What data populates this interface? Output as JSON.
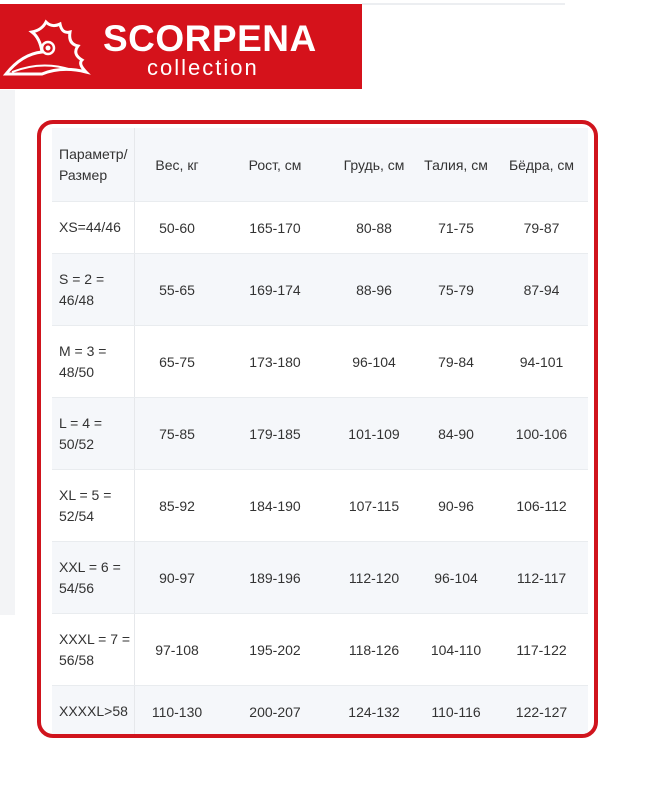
{
  "logo": {
    "brand": "SCORPENA",
    "sub": "collection",
    "color": "#d5121b"
  },
  "table": {
    "headers": [
      "Параметр/ Размер",
      "Вес, кг",
      "Рост, см",
      "Грудь, см",
      "Талия, см",
      "Бёдра, см"
    ],
    "rows": [
      [
        "XS=44/46",
        "50-60",
        "165-170",
        "80-88",
        "71-75",
        "79-87"
      ],
      [
        "S = 2 = 46/48",
        "55-65",
        "169-174",
        "88-96",
        "75-79",
        "87-94"
      ],
      [
        "M = 3 = 48/50",
        "65-75",
        "173-180",
        "96-104",
        "79-84",
        "94-101"
      ],
      [
        "L = 4 = 50/52",
        "75-85",
        "179-185",
        "101-109",
        "84-90",
        "100-106"
      ],
      [
        "XL = 5 = 52/54",
        "85-92",
        "184-190",
        "107-115",
        "90-96",
        "106-112"
      ],
      [
        "XXL = 6 = 54/56",
        "90-97",
        "189-196",
        "112-120",
        "96-104",
        "112-117"
      ],
      [
        "XXXL = 7 = 56/58",
        "97-108",
        "195-202",
        "118-126",
        "104-110",
        "117-122"
      ],
      [
        "XXXXL>58",
        "110-130",
        "200-207",
        "124-132",
        "110-116",
        "122-127"
      ]
    ]
  }
}
